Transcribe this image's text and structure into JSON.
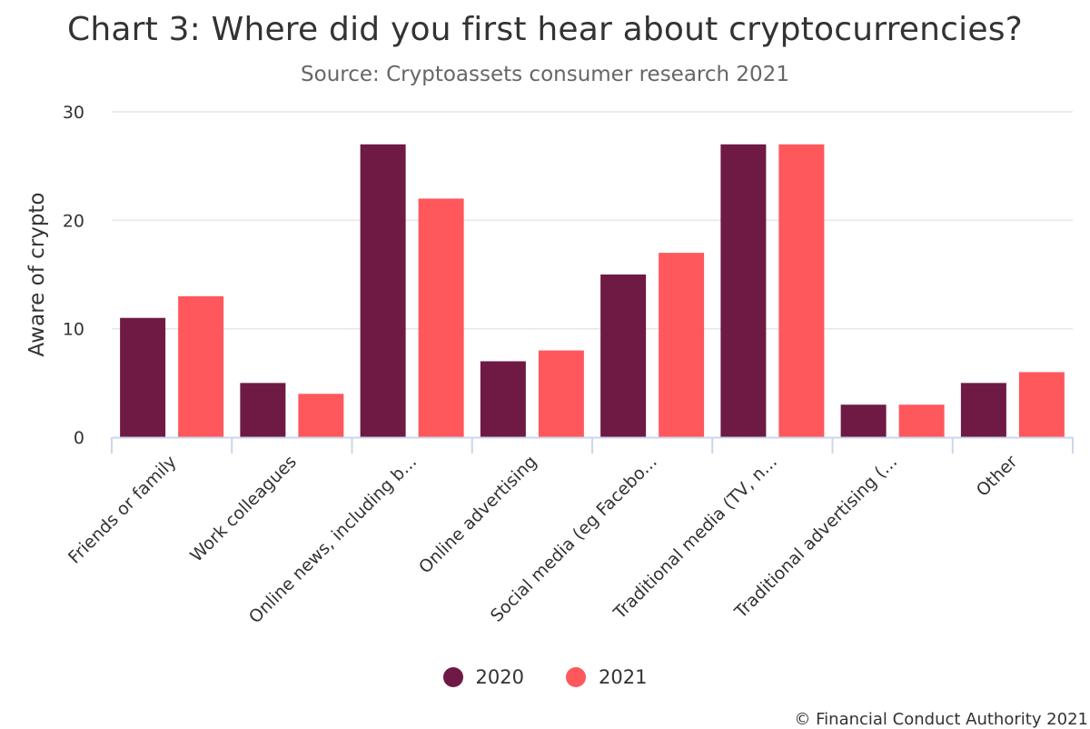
{
  "title": "Chart 3: Where did you first hear about cryptocurrencies?",
  "subtitle": "Source: Cryptoassets consumer research 2021",
  "credits": "© Financial Conduct Authority 2021",
  "chart_data": {
    "type": "bar",
    "categories": [
      "Friends or family",
      "Work colleagues",
      "Online news, including b...",
      "Online advertising",
      "Social media (eg Facebo...",
      "Traditional media (TV, n...",
      "Traditional advertising (...",
      "Other"
    ],
    "series": [
      {
        "name": "2020",
        "color": "#6e1a44",
        "values": [
          11,
          5,
          27,
          7,
          15,
          27,
          3,
          5
        ]
      },
      {
        "name": "2021",
        "color": "#fe585d",
        "values": [
          13,
          4,
          22,
          8,
          17,
          27,
          3,
          6
        ]
      }
    ],
    "ylabel": "Aware of crypto",
    "ylim": [
      0,
      30
    ],
    "yticks": [
      0,
      10,
      20,
      30
    ],
    "grid": true,
    "legend_position": "bottom-center"
  }
}
